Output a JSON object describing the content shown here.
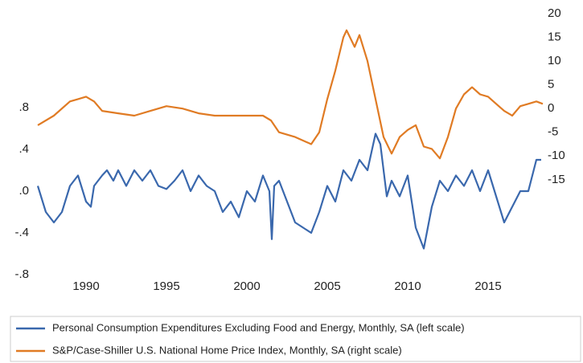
{
  "chart_data": {
    "type": "line",
    "xlim": [
      1986.8,
      2018.6
    ],
    "xticks": [
      1990,
      1995,
      2000,
      2005,
      2010,
      2015
    ],
    "ylim": [
      -0.8,
      1.7
    ],
    "yticks": [
      {
        "value": -0.8,
        "label": "-.8"
      },
      {
        "value": -0.4,
        "label": "-.4"
      },
      {
        "value": 0,
        "label": ".0"
      },
      {
        "value": 0.4,
        "label": ".4"
      },
      {
        "value": 0.8,
        "label": ".8"
      }
    ],
    "y2lim": [
      -35,
      20
    ],
    "y2ticks": [
      -15,
      -10,
      -5,
      0,
      5,
      10,
      15,
      20
    ],
    "grid": false,
    "legend": "bottom",
    "series": [
      {
        "name": "Personal Consumption Expenditures Excluding Food and Energy, Monthly, SA (left scale)",
        "color": "#3a68ad",
        "x": [
          1987,
          1987.5,
          1988,
          1988.5,
          1989,
          1989.5,
          1990,
          1990.3,
          1990.5,
          1991,
          1991.3,
          1991.7,
          1992,
          1992.5,
          1993,
          1993.5,
          1994,
          1994.5,
          1995,
          1995.5,
          1996,
          1996.5,
          1997,
          1997.5,
          1998,
          1998.5,
          1999,
          1999.5,
          2000,
          2000.5,
          2001,
          2001.4,
          2001.55,
          2001.7,
          2002,
          2002.5,
          2003,
          2003.5,
          2004,
          2004.5,
          2005,
          2005.5,
          2006,
          2006.5,
          2007,
          2007.5,
          2008,
          2008.3,
          2008.7,
          2009,
          2009.5,
          2010,
          2010.5,
          2011,
          2011.5,
          2012,
          2012.5,
          2013,
          2013.5,
          2014,
          2014.5,
          2015,
          2015.5,
          2016,
          2016.5,
          2017,
          2017.5,
          2018,
          2018.3
        ],
        "values": [
          0.05,
          -0.2,
          -0.3,
          -0.2,
          0.05,
          0.15,
          -0.1,
          -0.15,
          0.05,
          0.15,
          0.2,
          0.1,
          0.2,
          0.05,
          0.2,
          0.1,
          0.2,
          0.05,
          0.02,
          0.1,
          0.2,
          0.0,
          0.15,
          0.05,
          0.0,
          -0.2,
          -0.1,
          -0.25,
          0.0,
          -0.1,
          0.15,
          0.0,
          -0.46,
          0.05,
          0.1,
          -0.1,
          -0.3,
          -0.35,
          -0.4,
          -0.2,
          0.05,
          -0.1,
          0.2,
          0.1,
          0.3,
          0.2,
          0.55,
          0.45,
          -0.05,
          0.1,
          -0.05,
          0.15,
          -0.35,
          -0.55,
          -0.15,
          0.1,
          0.0,
          0.15,
          0.05,
          0.2,
          0.0,
          0.2,
          -0.05,
          -0.3,
          -0.15,
          0.0,
          0.0,
          0.3,
          0.3
        ]
      },
      {
        "name": "S&P/Case-Shiller U.S. National Home Price Index, Monthly, SA (right scale)",
        "color": "#e07b24",
        "axis": "y2",
        "x": [
          1987,
          1988,
          1989,
          1989.5,
          1990,
          1990.5,
          1991,
          1992,
          1993,
          1994,
          1995,
          1996,
          1997,
          1998,
          1999,
          2000,
          2001,
          2001.5,
          2002,
          2003,
          2004,
          2004.5,
          2005,
          2005.5,
          2006,
          2006.2,
          2006.7,
          2007,
          2007.5,
          2008,
          2008.5,
          2009,
          2009.5,
          2010,
          2010.5,
          2011,
          2011.5,
          2012,
          2012.5,
          2013,
          2013.5,
          2014,
          2014.5,
          2015,
          2015.5,
          2016,
          2016.5,
          2017,
          2017.5,
          2018,
          2018.4
        ],
        "values": [
          -3.5,
          -1.5,
          1.5,
          2,
          2.5,
          1.5,
          -0.5,
          -1,
          -1.5,
          -0.5,
          0.5,
          0,
          -1,
          -1.5,
          -1.5,
          -1.5,
          -1.5,
          -2.5,
          -5,
          -6,
          -7.5,
          -5,
          2,
          8,
          15,
          16.5,
          13,
          15.5,
          10,
          2,
          -6,
          -9.5,
          -6,
          -4.5,
          -3.5,
          -8,
          -8.5,
          -10.5,
          -6,
          0,
          3,
          4.5,
          3,
          2.5,
          1,
          -0.5,
          -1.5,
          0.5,
          1,
          1.5,
          1
        ]
      }
    ]
  }
}
